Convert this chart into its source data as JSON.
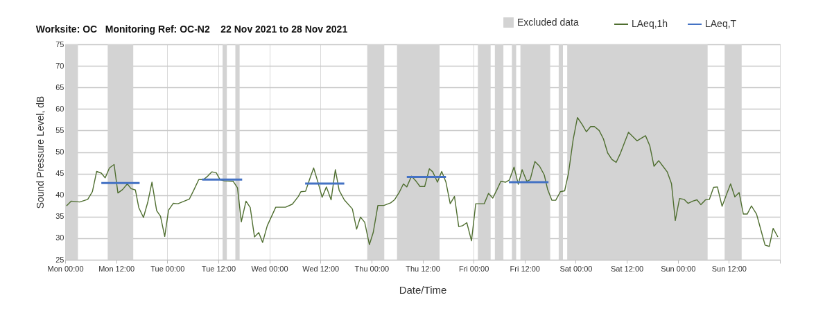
{
  "chart_data": {
    "type": "line",
    "title": "Worksite: OC   Monitoring Ref: OC-N2    22 Nov 2021 to 28 Nov 2021",
    "xlabel": "Date/Time",
    "ylabel": "Sound Pressure Level, dB",
    "xlim": [
      "2021-11-22T00:00",
      "2021-11-29T00:00"
    ],
    "ylim": [
      25,
      75
    ],
    "xticks": [
      {
        "value": "2021-11-22T00:00",
        "label": "Mon 00:00"
      },
      {
        "value": "2021-11-22T12:00",
        "label": "Mon 12:00"
      },
      {
        "value": "2021-11-23T00:00",
        "label": "Tue 00:00"
      },
      {
        "value": "2021-11-23T12:00",
        "label": "Tue 12:00"
      },
      {
        "value": "2021-11-24T00:00",
        "label": "Wed 00:00"
      },
      {
        "value": "2021-11-24T12:00",
        "label": "Wed 12:00"
      },
      {
        "value": "2021-11-25T00:00",
        "label": "Thu 00:00"
      },
      {
        "value": "2021-11-25T12:00",
        "label": "Thu 12:00"
      },
      {
        "value": "2021-11-26T00:00",
        "label": "Fri 00:00"
      },
      {
        "value": "2021-11-26T12:00",
        "label": "Fri 12:00"
      },
      {
        "value": "2021-11-27T00:00",
        "label": "Sat 00:00"
      },
      {
        "value": "2021-11-27T12:00",
        "label": "Sat 12:00"
      },
      {
        "value": "2021-11-28T00:00",
        "label": "Sun 00:00"
      },
      {
        "value": "2021-11-28T12:00",
        "label": "Sun 12:00"
      },
      {
        "value": "2021-11-29T00:00",
        "label": null
      }
    ],
    "yticks": [
      25,
      30,
      35,
      40,
      45,
      50,
      55,
      60,
      65,
      70,
      75
    ],
    "grid": true,
    "legend": "top right",
    "bands": [
      {
        "axis": "x",
        "from": "2021-11-22T00:00",
        "to": "2021-11-22T03:00",
        "label": "Excluded data",
        "color": "#d3d3d3"
      },
      {
        "axis": "x",
        "from": "2021-11-22T10:00",
        "to": "2021-11-22T16:00",
        "color": "#d3d3d3"
      },
      {
        "axis": "x",
        "from": "2021-11-23T13:00",
        "to": "2021-11-23T14:00",
        "color": "#d3d3d3"
      },
      {
        "axis": "x",
        "from": "2021-11-23T16:00",
        "to": "2021-11-23T17:00",
        "color": "#d3d3d3"
      },
      {
        "axis": "x",
        "from": "2021-11-24T23:00",
        "to": "2021-11-25T03:00",
        "color": "#d3d3d3"
      },
      {
        "axis": "x",
        "from": "2021-11-25T06:00",
        "to": "2021-11-25T16:00",
        "color": "#d3d3d3"
      },
      {
        "axis": "x",
        "from": "2021-11-26T01:00",
        "to": "2021-11-26T04:00",
        "color": "#d3d3d3"
      },
      {
        "axis": "x",
        "from": "2021-11-26T05:00",
        "to": "2021-11-26T07:00",
        "color": "#d3d3d3"
      },
      {
        "axis": "x",
        "from": "2021-11-26T09:00",
        "to": "2021-11-26T10:00",
        "color": "#d3d3d3"
      },
      {
        "axis": "x",
        "from": "2021-11-26T11:00",
        "to": "2021-11-26T18:00",
        "color": "#d3d3d3"
      },
      {
        "axis": "x",
        "from": "2021-11-26T20:00",
        "to": "2021-11-26T21:00",
        "color": "#d3d3d3"
      },
      {
        "axis": "x",
        "from": "2021-11-26T22:00",
        "to": "2021-11-28T07:00",
        "color": "#d3d3d3"
      },
      {
        "axis": "x",
        "from": "2021-11-28T11:00",
        "to": "2021-11-28T15:00",
        "color": "#d3d3d3"
      }
    ],
    "series": [
      {
        "name": "LAeq,1h",
        "color": "#4f6e30",
        "x": [
          "2021-11-22T00:18",
          "2021-11-22T01:24",
          "2021-11-22T03:24",
          "2021-11-22T05:18",
          "2021-11-22T06:24",
          "2021-11-22T07:24",
          "2021-11-22T08:30",
          "2021-11-22T09:24",
          "2021-11-22T10:24",
          "2021-11-22T11:30",
          "2021-11-22T12:24",
          "2021-11-22T13:30",
          "2021-11-22T14:36",
          "2021-11-22T15:30",
          "2021-11-22T16:30",
          "2021-11-22T17:18",
          "2021-11-22T18:24",
          "2021-11-22T19:24",
          "2021-11-22T20:24",
          "2021-11-22T21:30",
          "2021-11-22T22:24",
          "2021-11-22T23:24",
          "2021-11-23T00:18",
          "2021-11-23T01:24",
          "2021-11-23T02:30",
          "2021-11-23T05:12",
          "2021-11-23T06:18",
          "2021-11-23T07:24",
          "2021-11-23T08:30",
          "2021-11-23T09:30",
          "2021-11-23T10:30",
          "2021-11-23T11:30",
          "2021-11-23T12:24",
          "2021-11-23T13:24",
          "2021-11-23T15:30",
          "2021-11-23T16:30",
          "2021-11-23T17:24",
          "2021-11-23T18:30",
          "2021-11-23T19:30",
          "2021-11-23T20:30",
          "2021-11-23T21:30",
          "2021-11-23T22:24",
          "2021-11-23T23:30",
          "2021-11-24T01:30",
          "2021-11-24T03:48",
          "2021-11-24T05:24",
          "2021-11-24T06:48",
          "2021-11-24T07:24",
          "2021-11-24T08:30",
          "2021-11-24T09:30",
          "2021-11-24T10:24",
          "2021-11-24T11:30",
          "2021-11-24T12:24",
          "2021-11-24T13:24",
          "2021-11-24T14:30",
          "2021-11-24T15:30",
          "2021-11-24T16:24",
          "2021-11-24T17:36",
          "2021-11-24T19:30",
          "2021-11-24T20:30",
          "2021-11-24T21:24",
          "2021-11-24T22:24",
          "2021-11-24T23:30",
          "2021-11-25T00:24",
          "2021-11-25T01:30",
          "2021-11-25T02:54",
          "2021-11-25T04:30",
          "2021-11-25T05:24",
          "2021-11-25T06:30",
          "2021-11-25T07:30",
          "2021-11-25T08:18",
          "2021-11-25T09:24",
          "2021-11-25T10:30",
          "2021-11-25T11:24",
          "2021-11-25T12:30",
          "2021-11-25T13:36",
          "2021-11-25T14:24",
          "2021-11-25T15:30",
          "2021-11-25T16:30",
          "2021-11-25T17:30",
          "2021-11-25T18:30",
          "2021-11-25T19:30",
          "2021-11-25T20:30",
          "2021-11-25T21:24",
          "2021-11-25T22:24",
          "2021-11-25T23:30",
          "2021-11-26T00:30",
          "2021-11-26T02:30",
          "2021-11-26T03:30",
          "2021-11-26T04:30",
          "2021-11-26T05:30",
          "2021-11-26T06:24",
          "2021-11-26T07:30",
          "2021-11-26T08:24",
          "2021-11-26T09:30",
          "2021-11-26T10:30",
          "2021-11-26T11:24",
          "2021-11-26T12:30",
          "2021-11-26T13:18",
          "2021-11-26T14:24",
          "2021-11-26T15:30",
          "2021-11-26T16:36",
          "2021-11-26T17:24",
          "2021-11-26T18:24",
          "2021-11-26T19:18",
          "2021-11-26T20:24",
          "2021-11-26T21:24",
          "2021-11-26T22:18",
          "2021-11-26T23:24",
          "2021-11-27T00:24",
          "2021-11-27T01:30",
          "2021-11-27T02:30",
          "2021-11-27T03:30",
          "2021-11-27T04:24",
          "2021-11-27T05:30",
          "2021-11-27T06:30",
          "2021-11-27T07:30",
          "2021-11-27T08:30",
          "2021-11-27T09:30",
          "2021-11-27T10:30",
          "2021-11-27T12:24",
          "2021-11-27T14:24",
          "2021-11-27T16:24",
          "2021-11-27T17:24",
          "2021-11-27T18:24",
          "2021-11-27T19:30",
          "2021-11-27T20:30",
          "2021-11-27T21:30",
          "2021-11-27T22:30",
          "2021-11-27T23:24",
          "2021-11-28T00:24",
          "2021-11-28T01:30",
          "2021-11-28T02:24",
          "2021-11-28T03:30",
          "2021-11-28T04:30",
          "2021-11-28T05:24",
          "2021-11-28T06:30",
          "2021-11-28T07:24",
          "2021-11-28T08:24",
          "2021-11-28T09:18",
          "2021-11-28T10:24",
          "2021-11-28T11:30",
          "2021-11-28T12:24",
          "2021-11-28T13:24",
          "2021-11-28T14:24",
          "2021-11-28T15:24",
          "2021-11-28T16:18",
          "2021-11-28T17:18",
          "2021-11-28T18:30",
          "2021-11-28T19:30",
          "2021-11-28T20:30",
          "2021-11-28T21:30",
          "2021-11-28T22:24",
          "2021-11-28T23:30"
        ],
        "values": [
          37.5,
          38.6,
          38.4,
          39.0,
          40.8,
          45.5,
          45.1,
          44.0,
          46.3,
          47.1,
          40.5,
          41.3,
          42.6,
          41.5,
          41.2,
          37.1,
          34.8,
          38.3,
          43.0,
          36.4,
          35.1,
          30.4,
          36.5,
          38.1,
          38.0,
          39.1,
          41.3,
          43.6,
          43.6,
          44.4,
          45.4,
          45.2,
          43.6,
          43.3,
          43.2,
          41.7,
          33.8,
          38.6,
          37.1,
          30.3,
          31.3,
          29.0,
          32.9,
          37.2,
          37.2,
          37.9,
          39.7,
          40.8,
          40.9,
          43.8,
          46.3,
          42.7,
          39.5,
          41.9,
          38.9,
          45.9,
          41.1,
          38.9,
          36.8,
          32.1,
          34.9,
          33.7,
          28.5,
          31.3,
          37.6,
          37.6,
          38.2,
          38.9,
          40.6,
          42.6,
          41.9,
          44.4,
          43.2,
          42.0,
          42.0,
          46.1,
          45.4,
          43.0,
          45.5,
          43.0,
          38.0,
          39.7,
          32.7,
          32.9,
          33.6,
          29.4,
          38.0,
          38.0,
          40.4,
          39.3,
          41.3,
          43.2,
          43.0,
          43.5,
          46.5,
          42.5,
          45.9,
          43.2,
          43.6,
          47.8,
          46.7,
          44.7,
          41.3,
          38.8,
          38.8,
          40.8,
          41.0,
          45.1,
          52.9,
          58.0,
          56.4,
          54.7,
          55.9,
          55.9,
          55.0,
          53.1,
          49.8,
          48.3,
          47.6,
          49.7,
          54.6,
          52.6,
          53.8,
          51.5,
          46.7,
          48.0,
          46.7,
          45.4,
          42.7,
          34.1,
          39.2,
          39.0,
          38.1,
          38.6,
          38.9,
          37.8,
          38.9,
          39.0,
          41.8,
          41.9,
          37.4,
          40.3,
          42.6,
          39.6,
          40.6,
          35.6,
          35.6,
          37.5,
          35.6,
          32.0,
          28.4,
          28.1,
          32.3,
          30.3
        ]
      },
      {
        "name": "LAeq,T",
        "color": "#4472c4",
        "x": [
          "2021-11-22T08:30",
          "2021-11-22T17:30",
          "2021-11-23T00:00",
          "2021-11-23T08:12",
          "2021-11-23T17:36",
          "2021-11-24T00:00",
          "2021-11-24T08:24",
          "2021-11-24T17:36",
          "2021-11-25T00:00",
          "2021-11-25T08:18",
          "2021-11-25T17:30",
          "2021-11-26T00:00",
          "2021-11-26T08:18",
          "2021-11-26T17:36"
        ],
        "values": [
          42.8,
          42.8,
          null,
          43.6,
          43.6,
          null,
          42.7,
          42.7,
          null,
          44.2,
          44.2,
          null,
          43.0,
          43.0
        ]
      }
    ]
  }
}
